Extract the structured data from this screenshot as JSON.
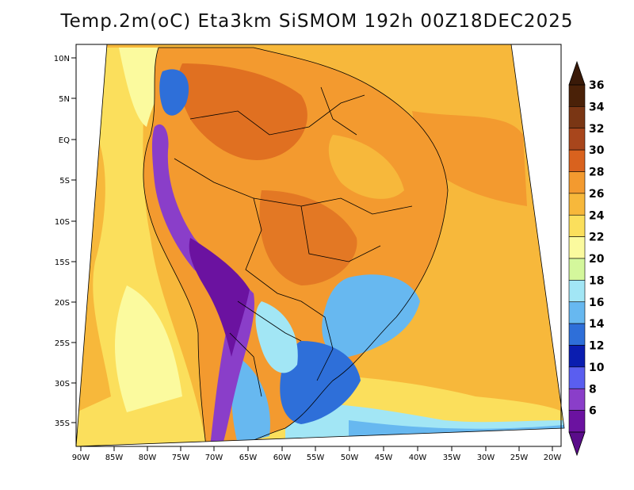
{
  "title": "Temp.2m(oC) Eta3km SiSMOM 192h 00Z18DEC2025",
  "map": {
    "lat_labels": [
      "10N",
      "5N",
      "EQ",
      "5S",
      "10S",
      "15S",
      "20S",
      "25S",
      "30S",
      "35S"
    ],
    "lon_labels": [
      "90W",
      "85W",
      "80W",
      "75W",
      "70W",
      "65W",
      "60W",
      "55W",
      "50W",
      "45W",
      "40W",
      "35W",
      "30W",
      "25W",
      "20W"
    ]
  },
  "colorbar": {
    "labels": [
      "36",
      "34",
      "32",
      "30",
      "28",
      "26",
      "24",
      "22",
      "20",
      "18",
      "16",
      "14",
      "12",
      "10",
      "8",
      "6"
    ],
    "colors": [
      "#4a2108",
      "#7a3614",
      "#a8461c",
      "#d9621e",
      "#f39a2f",
      "#f7b83b",
      "#fbdf5c",
      "#fbfa9e",
      "#d4f79c",
      "#a2e6f5",
      "#67b8f0",
      "#2e6fd9",
      "#0a1db0",
      "#5a5ef0",
      "#8a3ec9",
      "#6b12a0"
    ],
    "top_arrow_color": "#3a1a08",
    "bottom_arrow_color": "#5a0c8a"
  },
  "colors": {
    "ocean_warm": "#f7b83b",
    "ocean_mid": "#fbdf5c",
    "ocean_cool": "#fbfa9e",
    "land_hot": "#f39a2f",
    "andes_cold": "#6b12a0",
    "south_cool": "#67b8f0"
  }
}
